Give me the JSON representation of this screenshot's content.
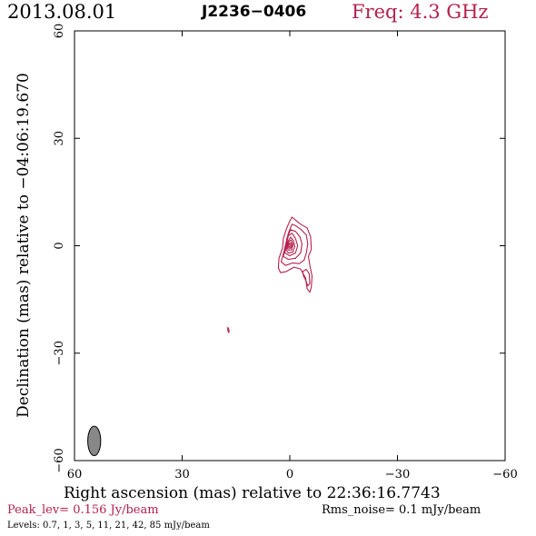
{
  "header": {
    "date": "2013.08.01",
    "source": "J2236−0406",
    "freq": "Freq: 4.3 GHz"
  },
  "axes": {
    "xlabel": "Right ascension (mas) relative to 22:36:16.7743",
    "ylabel": "Declination (mas) relative to −04:06:19.670"
  },
  "footer": {
    "peak": "Peak_lev=  0.156 Jy/beam",
    "rms": "Rms_noise=  0.1 mJy/beam",
    "levels": "Levels: 0.7,    1,    3,    5,   11,   21,   42,   85 mJy/beam"
  },
  "colors": {
    "contour": "#b5204d",
    "beam": "#888888",
    "accent": "#b5204d"
  },
  "chart_data": {
    "type": "contour",
    "xlim": [
      60,
      -60
    ],
    "ylim": [
      -60,
      60
    ],
    "x_ticks": [
      "60",
      "30",
      "0",
      "−30",
      "−60"
    ],
    "y_ticks": [
      "−60",
      "−30",
      "0",
      "30",
      "60"
    ],
    "x_tick_values": [
      60,
      30,
      0,
      -30,
      -60
    ],
    "y_tick_values": [
      -60,
      -30,
      0,
      30,
      60
    ],
    "contour_levels_mjy": [
      0.7,
      1,
      3,
      5,
      11,
      21,
      42,
      85
    ],
    "components": [
      {
        "x": 0.3,
        "y": 0.5,
        "peak": true
      },
      {
        "x": -5.0,
        "y": -8.0
      },
      {
        "x": 17.0,
        "y": -23.5
      }
    ],
    "contours": [
      [
        [
          3.2,
          -6.2
        ],
        [
          3.0,
          -3.5
        ],
        [
          2.0,
          -0.5
        ],
        [
          1.8,
          2.0
        ],
        [
          1.0,
          4.5
        ],
        [
          0.2,
          6.5
        ],
        [
          -0.6,
          8.0
        ],
        [
          -1.8,
          7.0
        ],
        [
          -3.0,
          6.0
        ],
        [
          -4.8,
          5.0
        ],
        [
          -5.8,
          2.5
        ],
        [
          -6.0,
          -1.0
        ],
        [
          -5.2,
          -3.0
        ],
        [
          -5.6,
          -5.5
        ],
        [
          -6.2,
          -8.5
        ],
        [
          -6.0,
          -11.5
        ],
        [
          -5.6,
          -13.0
        ],
        [
          -4.8,
          -12.0
        ],
        [
          -4.4,
          -9.0
        ],
        [
          -3.0,
          -6.5
        ],
        [
          -1.2,
          -6.0
        ],
        [
          1.0,
          -7.2
        ],
        [
          2.6,
          -7.5
        ]
      ],
      [
        [
          2.4,
          -4.5
        ],
        [
          1.6,
          -1.5
        ],
        [
          1.0,
          1.0
        ],
        [
          0.4,
          3.5
        ],
        [
          -0.6,
          6.0
        ],
        [
          -1.8,
          5.5
        ],
        [
          -3.2,
          4.5
        ],
        [
          -4.6,
          3.0
        ],
        [
          -5.0,
          0.5
        ],
        [
          -4.6,
          -2.0
        ],
        [
          -4.0,
          -4.0
        ],
        [
          -2.6,
          -5.0
        ],
        [
          -0.8,
          -4.8
        ],
        [
          1.2,
          -5.5
        ]
      ],
      [
        [
          1.8,
          -3.0
        ],
        [
          1.2,
          -0.5
        ],
        [
          0.8,
          2.0
        ],
        [
          -0.2,
          4.5
        ],
        [
          -1.6,
          4.0
        ],
        [
          -2.8,
          2.5
        ],
        [
          -3.4,
          0.5
        ],
        [
          -3.0,
          -2.0
        ],
        [
          -1.6,
          -3.5
        ],
        [
          0.4,
          -3.8
        ]
      ],
      [
        [
          1.4,
          -2.0
        ],
        [
          0.9,
          0.5
        ],
        [
          0.4,
          2.8
        ],
        [
          -0.6,
          3.5
        ],
        [
          -1.6,
          2.0
        ],
        [
          -2.2,
          0.0
        ],
        [
          -1.6,
          -2.0
        ],
        [
          0.0,
          -2.8
        ]
      ],
      [
        [
          1.0,
          -1.2
        ],
        [
          0.6,
          1.0
        ],
        [
          -0.2,
          2.4
        ],
        [
          -1.0,
          1.5
        ],
        [
          -1.4,
          -0.2
        ],
        [
          -0.8,
          -1.8
        ],
        [
          0.4,
          -2.0
        ]
      ],
      [
        [
          0.8,
          -0.6
        ],
        [
          0.4,
          1.2
        ],
        [
          -0.4,
          1.6
        ],
        [
          -0.9,
          0.3
        ],
        [
          -0.5,
          -1.2
        ],
        [
          0.4,
          -1.2
        ]
      ],
      [
        [
          0.6,
          -0.2
        ],
        [
          0.2,
          0.9
        ],
        [
          -0.4,
          0.9
        ],
        [
          -0.6,
          0.0
        ],
        [
          -0.2,
          -0.7
        ],
        [
          0.4,
          -0.6
        ]
      ],
      [
        [
          0.3,
          0.0
        ],
        [
          0.0,
          0.5
        ],
        [
          -0.3,
          0.3
        ],
        [
          -0.2,
          -0.3
        ],
        [
          0.2,
          -0.3
        ]
      ],
      [
        [
          -3.6,
          -7.2
        ],
        [
          -4.6,
          -6.6
        ],
        [
          -5.4,
          -7.8
        ],
        [
          -5.6,
          -10.5
        ],
        [
          -5.0,
          -11.2
        ],
        [
          -4.4,
          -9.6
        ],
        [
          -3.8,
          -8.4
        ]
      ],
      [
        [
          17.3,
          -22.8
        ],
        [
          17.0,
          -23.3
        ],
        [
          16.9,
          -24.0
        ],
        [
          17.1,
          -24.2
        ],
        [
          17.3,
          -23.6
        ]
      ]
    ],
    "beam": {
      "x": 54.5,
      "y": -54.5,
      "major_mas": 8.2,
      "minor_mas": 3.6,
      "pa_deg": 0
    }
  }
}
